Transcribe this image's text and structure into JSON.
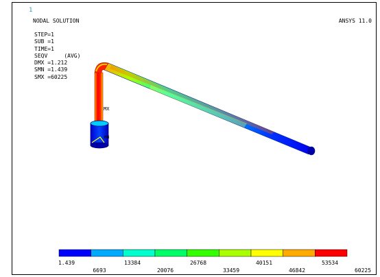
{
  "window": {
    "number": "1",
    "title": "NODAL SOLUTION",
    "product": "ANSYS 11.0"
  },
  "info": [
    {
      "label": "STEP",
      "text": "STEP=1"
    },
    {
      "label": "SUB",
      "text": "SUB =1"
    },
    {
      "label": "TIME",
      "text": "TIME=1"
    },
    {
      "label": "SEQV",
      "text": "SEQV     (AVG)"
    },
    {
      "label": "DMX",
      "text": "DMX =1.212"
    },
    {
      "label": "SMN",
      "text": "SMN =1.439"
    },
    {
      "label": "SMX",
      "text": "SMX =60225"
    }
  ],
  "model": {
    "marker_mx": "MX",
    "marker_mn": "MN"
  },
  "legend": {
    "colors": [
      "#0000ff",
      "#00aaff",
      "#00ffcc",
      "#00ff66",
      "#33ff00",
      "#aaff00",
      "#ffff00",
      "#ffaa00",
      "#ff0000"
    ],
    "top_labels": [
      "1.439",
      "13384",
      "26768",
      "40151",
      "53534"
    ],
    "bottom_labels": [
      "6693",
      "20076",
      "33459",
      "46842",
      "60225"
    ]
  }
}
